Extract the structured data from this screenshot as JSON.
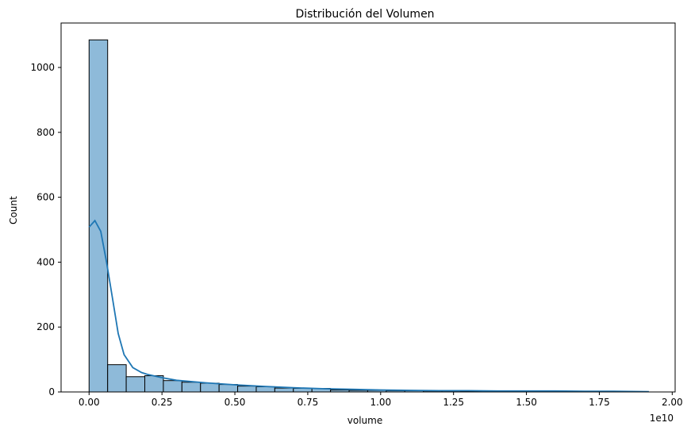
{
  "chart_data": {
    "type": "histogram",
    "title": "Distribución del Volumen",
    "xlabel": "volume",
    "ylabel": "Count",
    "x_offset_label": "1e10",
    "xlim": [
      -0.096,
      2.01
    ],
    "ylim": [
      0,
      1137
    ],
    "x_ticks": [
      0.0,
      0.25,
      0.5,
      0.75,
      1.0,
      1.25,
      1.5,
      1.75,
      2.0
    ],
    "x_tick_labels": [
      "0.00",
      "0.25",
      "0.50",
      "0.75",
      "1.00",
      "1.25",
      "1.50",
      "1.75",
      "2.00"
    ],
    "y_ticks": [
      0,
      200,
      400,
      600,
      800,
      1000
    ],
    "y_tick_labels": [
      "0",
      "200",
      "400",
      "600",
      "800",
      "1000"
    ],
    "bin_width": 0.0637,
    "bin_start": 0.0,
    "counts": [
      1085,
      84,
      47,
      50,
      35,
      30,
      27,
      23,
      18,
      16,
      12,
      11,
      11,
      6,
      5,
      5,
      4,
      4,
      3,
      3,
      2,
      2,
      2,
      2,
      2,
      2,
      2,
      2,
      2,
      1
    ],
    "kde": {
      "x": [
        0.0,
        0.02,
        0.04,
        0.06,
        0.08,
        0.1,
        0.12,
        0.15,
        0.18,
        0.2,
        0.25,
        0.3,
        0.4,
        0.5,
        0.6,
        0.7,
        0.8,
        0.9,
        1.0,
        1.1,
        1.2,
        1.3,
        1.4,
        1.5,
        1.6,
        1.7,
        1.8,
        1.92
      ],
      "y": [
        508,
        528,
        495,
        400,
        290,
        180,
        115,
        75,
        60,
        54,
        44,
        36,
        28,
        22,
        17,
        13,
        10,
        8,
        6,
        5,
        4,
        4,
        3,
        3,
        3,
        2,
        2,
        1
      ]
    },
    "colors": {
      "bar_fill": "#8ebad9",
      "bar_edge": "#000000",
      "kde_line": "#1f77b4"
    },
    "grid": false
  }
}
